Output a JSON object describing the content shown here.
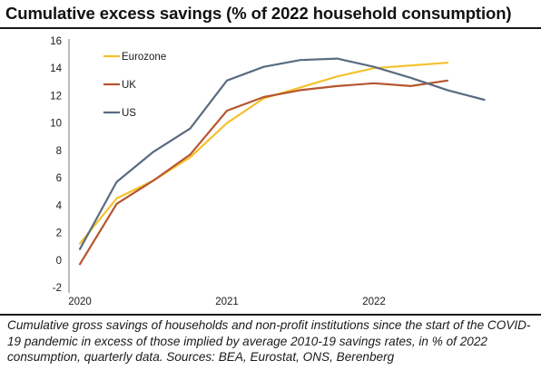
{
  "title": "Cumulative excess savings (% of 2022 household consumption)",
  "caption": "Cumulative gross savings of households and non-profit institutions since the start of the COVID-19 pandemic in excess of those implied by average 2010-19 savings rates, in % of 2022 consumption, quarterly data. Sources: BEA, Eurostat, ONS, Berenberg",
  "colors": {
    "Eurozone": "#f4c22b",
    "UK": "#b5562f",
    "US": "#5a6b80"
  },
  "chart_data": {
    "type": "line",
    "title": "Cumulative excess savings (% of 2022 household consumption)",
    "x_tick_labels": [
      "2020",
      "2021",
      "2022"
    ],
    "yticks": [
      -2,
      0,
      2,
      4,
      6,
      8,
      10,
      12,
      14,
      16
    ],
    "ylim": [
      -2,
      16
    ],
    "grid": false,
    "legend_position": "top-left, inside plot",
    "xlabel": "",
    "ylabel": "",
    "series": [
      {
        "name": "Eurozone",
        "x": [
          "2020Q1",
          "2020Q2",
          "2020Q3",
          "2020Q4",
          "2021Q1",
          "2021Q2",
          "2021Q3",
          "2021Q4",
          "2022Q1",
          "2022Q2",
          "2022Q3"
        ],
        "values": [
          1.2,
          4.5,
          5.8,
          7.5,
          10.0,
          11.8,
          12.6,
          13.4,
          14.0,
          14.2,
          14.4
        ]
      },
      {
        "name": "UK",
        "x": [
          "2020Q1",
          "2020Q2",
          "2020Q3",
          "2020Q4",
          "2021Q1",
          "2021Q2",
          "2021Q3",
          "2021Q4",
          "2022Q1",
          "2022Q2",
          "2022Q3"
        ],
        "values": [
          -0.3,
          4.1,
          5.8,
          7.7,
          10.9,
          11.9,
          12.4,
          12.7,
          12.9,
          12.7,
          13.1
        ]
      },
      {
        "name": "US",
        "x": [
          "2020Q1",
          "2020Q2",
          "2020Q3",
          "2020Q4",
          "2021Q1",
          "2021Q2",
          "2021Q3",
          "2021Q4",
          "2022Q1",
          "2022Q2",
          "2022Q3",
          "2022Q4"
        ],
        "values": [
          0.8,
          5.7,
          7.9,
          9.6,
          13.1,
          14.1,
          14.6,
          14.7,
          14.1,
          13.3,
          12.4,
          11.7
        ]
      }
    ]
  }
}
